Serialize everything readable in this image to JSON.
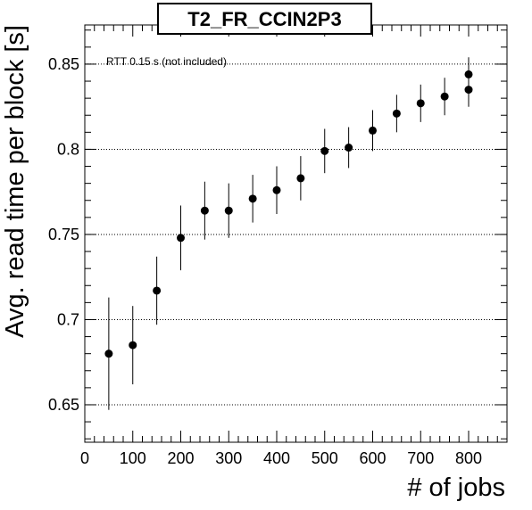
{
  "chart_data": {
    "type": "scatter",
    "title": "T2_FR_CCIN2P3",
    "xlabel": "# of jobs",
    "ylabel": "Avg. read time per block [s]",
    "annotation": "RTT 0.15 s (not included)",
    "xlim": [
      0,
      880
    ],
    "ylim": [
      0.628,
      0.873
    ],
    "xticks": [
      0,
      100,
      200,
      300,
      400,
      500,
      600,
      700,
      800
    ],
    "yticks": [
      0.65,
      0.7,
      0.75,
      0.8,
      0.85
    ],
    "ytick_labels": [
      "0.65",
      "0.7",
      "0.75",
      "0.8",
      "0.85"
    ],
    "ygrid": true,
    "xgrid": false,
    "series": [
      {
        "x": [
          50,
          100,
          150,
          200,
          250,
          300,
          350,
          400,
          450,
          500,
          550,
          600,
          650,
          700,
          750,
          800,
          800
        ],
        "y": [
          0.68,
          0.685,
          0.717,
          0.748,
          0.764,
          0.764,
          0.771,
          0.776,
          0.783,
          0.799,
          0.801,
          0.811,
          0.821,
          0.827,
          0.831,
          0.835,
          0.844
        ],
        "err": [
          0.033,
          0.023,
          0.02,
          0.019,
          0.017,
          0.016,
          0.014,
          0.014,
          0.013,
          0.013,
          0.012,
          0.012,
          0.011,
          0.011,
          0.011,
          0.01,
          0.01
        ]
      }
    ]
  }
}
